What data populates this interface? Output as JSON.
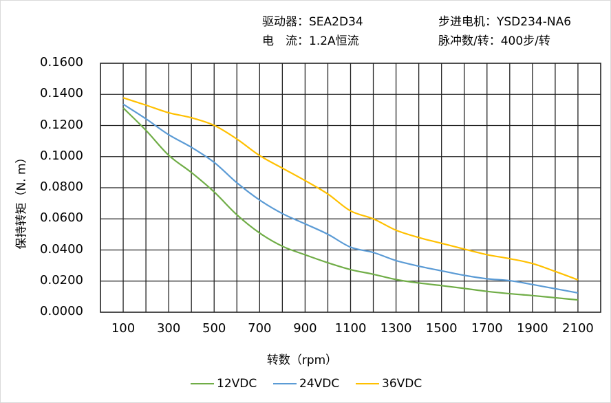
{
  "header": {
    "driver": "驱动器：SEA2D34",
    "current": "电　流：1.2A恒流",
    "motor": "步进电机：YSD234-NA6",
    "pulses": "脉冲数/转：400步/转"
  },
  "chart_data": {
    "type": "line",
    "xlabel": "转数（rpm）",
    "ylabel": "保持转矩（N. m）",
    "xlim": [
      0,
      2200
    ],
    "ylim": [
      0,
      0.16
    ],
    "grid": true,
    "legend_position": "bottom",
    "x_ticks": [
      "100",
      "300",
      "500",
      "700",
      "900",
      "1100",
      "1300",
      "1500",
      "1700",
      "1900",
      "2100"
    ],
    "y_ticks": [
      "0.0000",
      "0.0200",
      "0.0400",
      "0.0600",
      "0.0800",
      "0.1000",
      "0.1200",
      "0.1400",
      "0.1600"
    ],
    "x": [
      100,
      200,
      300,
      400,
      500,
      600,
      700,
      800,
      900,
      1000,
      1100,
      1200,
      1300,
      1400,
      1500,
      1600,
      1700,
      1800,
      1900,
      2000,
      2100
    ],
    "series": [
      {
        "name": "12VDC",
        "color": "#70ad47",
        "values": [
          0.1313,
          0.1169,
          0.1009,
          0.0898,
          0.0773,
          0.0626,
          0.0509,
          0.0424,
          0.0369,
          0.0318,
          0.0274,
          0.0244,
          0.021,
          0.0188,
          0.0171,
          0.0153,
          0.0134,
          0.0119,
          0.0107,
          0.0093,
          0.0079
        ]
      },
      {
        "name": "24VDC",
        "color": "#5b9bd5",
        "values": [
          0.1337,
          0.1243,
          0.1141,
          0.106,
          0.0963,
          0.0832,
          0.0721,
          0.0634,
          0.0568,
          0.0501,
          0.0418,
          0.0384,
          0.0332,
          0.0296,
          0.0266,
          0.0237,
          0.0215,
          0.0203,
          0.0178,
          0.0151,
          0.0124
        ]
      },
      {
        "name": "36VDC",
        "color": "#ffc000",
        "values": [
          0.1378,
          0.1331,
          0.1282,
          0.125,
          0.1201,
          0.1113,
          0.1007,
          0.0926,
          0.0846,
          0.076,
          0.0651,
          0.06,
          0.0527,
          0.048,
          0.0443,
          0.0406,
          0.037,
          0.0344,
          0.0313,
          0.0262,
          0.0208
        ]
      }
    ]
  }
}
